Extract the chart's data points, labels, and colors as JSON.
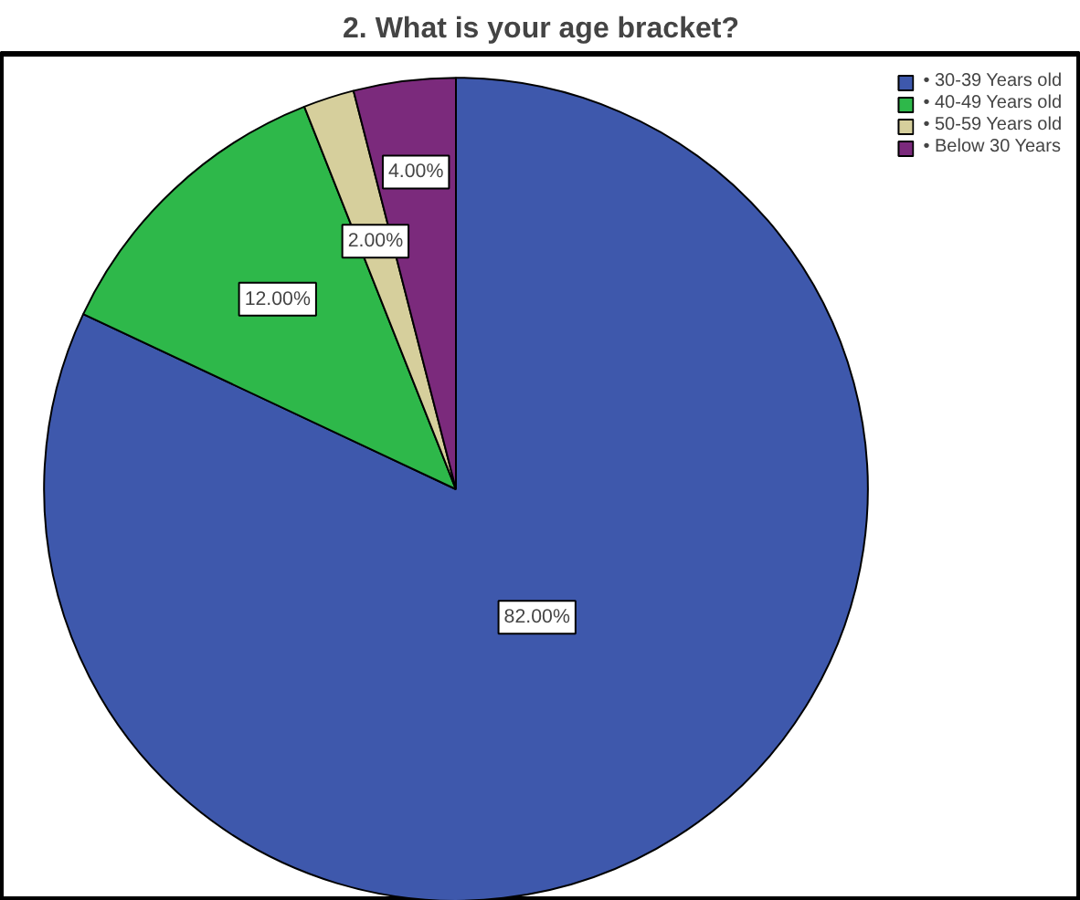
{
  "chart_data": {
    "type": "pie",
    "title": "2. What is your age bracket?",
    "categories": [
      "• 30-39 Years old",
      "• 40-49 Years old",
      "• 50-59 Years old",
      "• Below 30 Years"
    ],
    "values": [
      82,
      12,
      2,
      4
    ],
    "colors": [
      "#3e58ac",
      "#2eb84a",
      "#d6cf9c",
      "#7b2a7c"
    ],
    "value_labels": [
      "82.00%",
      "12.00%",
      "2.00%",
      "4.00%"
    ],
    "legend": "top right"
  }
}
